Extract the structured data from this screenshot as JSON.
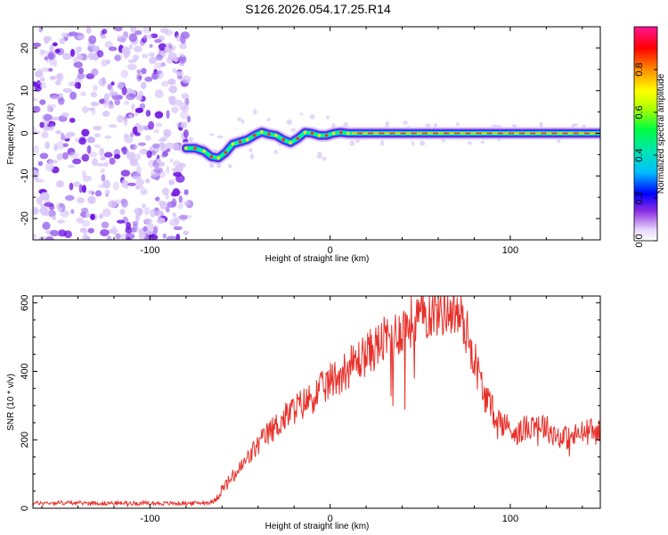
{
  "title": "S126.2026.054.17.25.R14",
  "chart_data": [
    {
      "type": "heatmap",
      "xlabel": "Height of straight line (km)",
      "ylabel": "Frequency (Hz)",
      "xlim": [
        -165,
        150
      ],
      "ylim": [
        -25,
        25
      ],
      "xticks": [
        -100,
        0,
        100
      ],
      "yticks": [
        -20,
        -10,
        0,
        10,
        20
      ],
      "colorbar": {
        "label": "Normalized spectral amplitude",
        "range": [
          0,
          1
        ],
        "ticks": [
          0.0,
          0.2,
          0.4,
          0.6,
          0.8
        ],
        "tick_labels": [
          "0.0",
          "0.2",
          "0.4",
          "0.6",
          "0.8"
        ],
        "colors": [
          "#ffffff",
          "#8a2be2",
          "#0000ff",
          "#00bfff",
          "#00ff7f",
          "#7fff00",
          "#ffff00",
          "#ffa500",
          "#ff0000",
          "#ff1493"
        ]
      },
      "noise_region_x": [
        -165,
        -78
      ],
      "signal_track": {
        "x": [
          -80,
          -75,
          -70,
          -66,
          -62,
          -58,
          -54,
          -50,
          -46,
          -42,
          -38,
          -34,
          -30,
          -26,
          -22,
          -18,
          -14,
          -10,
          -6,
          -2,
          2,
          6,
          10,
          12,
          150
        ],
        "freq": [
          -3.5,
          -3.5,
          -4.2,
          -5.5,
          -5.8,
          -4.5,
          -2.5,
          -2.0,
          -1.5,
          -0.5,
          0.3,
          -0.2,
          -0.5,
          -1.5,
          -2.2,
          -1.2,
          0.2,
          0.0,
          -0.5,
          -0.5,
          0.0,
          0.2,
          0.0,
          0.0,
          0.0
        ],
        "peak_amplitude": 0.95
      }
    },
    {
      "type": "line",
      "xlabel": "Height of straight line (km)",
      "ylabel": "SNR (10 * v/v)",
      "xlim": [
        -165,
        150
      ],
      "ylim": [
        0,
        620
      ],
      "xticks": [
        -100,
        0,
        100
      ],
      "yticks": [
        0,
        200,
        400,
        600
      ],
      "series": [
        {
          "name": "SNR",
          "color": "#e8302a",
          "x": [
            -165,
            -150,
            -130,
            -110,
            -90,
            -75,
            -65,
            -60,
            -55,
            -50,
            -45,
            -40,
            -35,
            -30,
            -25,
            -20,
            -15,
            -10,
            -5,
            0,
            5,
            10,
            15,
            20,
            25,
            30,
            35,
            40,
            45,
            50,
            55,
            60,
            65,
            70,
            75,
            80,
            85,
            90,
            95,
            100,
            105,
            110,
            115,
            120,
            125,
            130,
            135,
            140,
            145,
            150
          ],
          "values": [
            15,
            16,
            15,
            15,
            14,
            15,
            18,
            55,
            85,
            115,
            150,
            185,
            215,
            240,
            265,
            290,
            305,
            325,
            345,
            370,
            390,
            410,
            430,
            450,
            470,
            490,
            505,
            525,
            545,
            560,
            575,
            580,
            585,
            575,
            530,
            440,
            340,
            285,
            255,
            230,
            220,
            240,
            255,
            235,
            215,
            205,
            210,
            220,
            225,
            220
          ]
        }
      ]
    }
  ]
}
